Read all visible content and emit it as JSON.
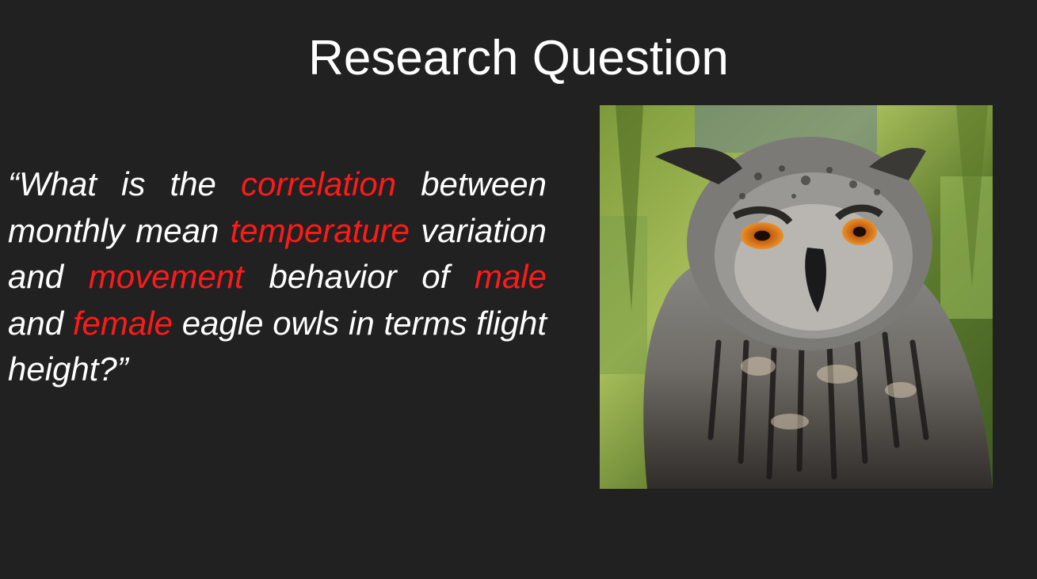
{
  "slide": {
    "title": "Research Question",
    "question": {
      "open_quote": "“",
      "seg1": "What is the ",
      "kw1": "correlation",
      "seg2": " between monthly mean ",
      "kw2": "temperature",
      "seg3": " variation and ",
      "kw3": "movement",
      "seg4": " behavior of ",
      "kw4": "male",
      "seg5": " and ",
      "kw5": "female",
      "seg6": " eagle owls in terms flight height?",
      "close_quote": "”"
    },
    "image": {
      "subject": "eagle-owl-photo"
    }
  },
  "colors": {
    "background": "#212121",
    "text": "#ffffff",
    "highlight": "#ff1a1a"
  }
}
